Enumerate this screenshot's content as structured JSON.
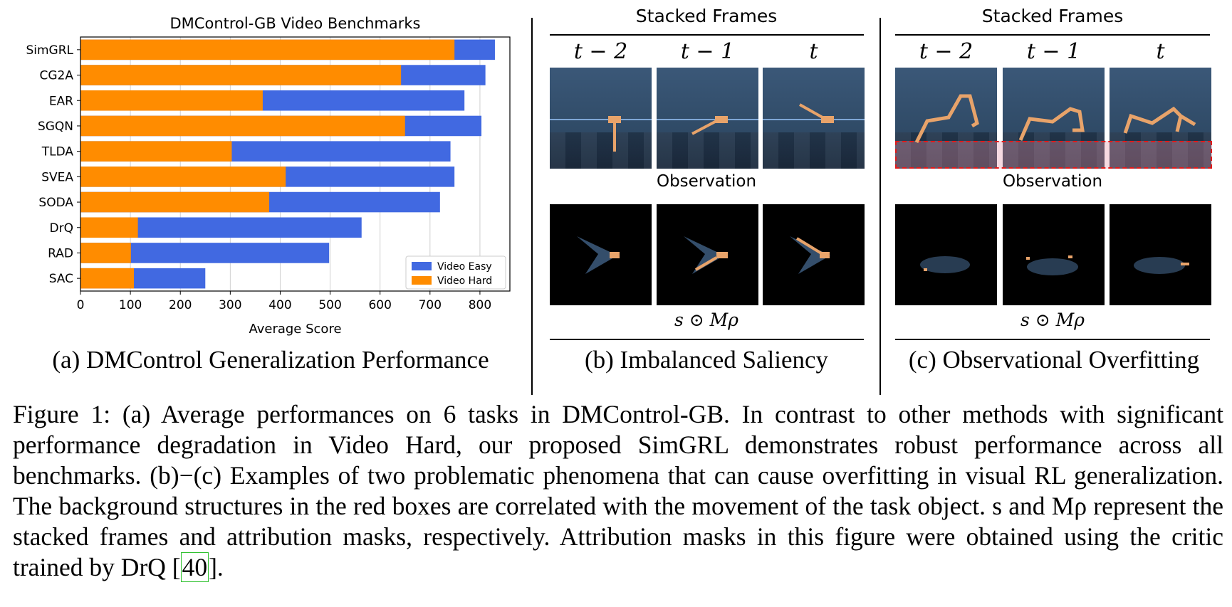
{
  "panel_a": {
    "subcaption": "(a) DMControl Generalization Performance"
  },
  "panel_b": {
    "title": "Stacked Frames",
    "frame_labels": [
      "t − 2",
      "t − 1",
      "t"
    ],
    "observation_label": "Observation",
    "formula": "s ⊙ Mρ",
    "subcaption": "(b) Imbalanced Saliency"
  },
  "panel_c": {
    "title": "Stacked Frames",
    "frame_labels": [
      "t − 2",
      "t − 1",
      "t"
    ],
    "observation_label": "Observation",
    "formula": "s ⊙ Mρ",
    "subcaption": "(c) Observational Overfitting"
  },
  "caption": {
    "text_before_ref": "Figure 1: (a) Average performances on 6 tasks in DMControl-GB. In contrast to other methods with significant performance degradation in Video Hard, our proposed SimGRL demonstrates robust performance across all benchmarks. (b)−(c) Examples of two problematic phenomena that can cause overfitting in visual RL generalization. The background structures in the red boxes are correlated with the movement of the task object. s and Mρ represent the stacked frames and attribution masks, respectively. Attribution masks in this figure were obtained using the critic trained by DrQ [",
    "ref": "40",
    "text_after_ref": "]."
  },
  "colors": {
    "video_easy": "#4169e1",
    "video_hard": "#ff8c00",
    "red_box": "#e01a1a"
  },
  "chart_data": {
    "type": "bar",
    "orientation": "horizontal",
    "stacked": "overlay",
    "title": "DMControl-GB Video Benchmarks",
    "xlabel": "Average Score",
    "ylabel": "",
    "xlim": [
      0,
      860
    ],
    "xticks": [
      0,
      100,
      200,
      300,
      400,
      500,
      600,
      700,
      800
    ],
    "grid": "vertical",
    "legend_position": "bottom-right",
    "categories": [
      "SimGRL",
      "CG2A",
      "EAR",
      "SGQN",
      "TLDA",
      "SVEA",
      "SODA",
      "DrQ",
      "RAD",
      "SAC"
    ],
    "series": [
      {
        "name": "Video Easy",
        "color": "#4169e1",
        "values": [
          830,
          811,
          769,
          803,
          741,
          749,
          720,
          563,
          498,
          250
        ]
      },
      {
        "name": "Video Hard",
        "color": "#ff8c00",
        "values": [
          749,
          642,
          365,
          650,
          303,
          411,
          378,
          115,
          101,
          107
        ]
      }
    ]
  }
}
